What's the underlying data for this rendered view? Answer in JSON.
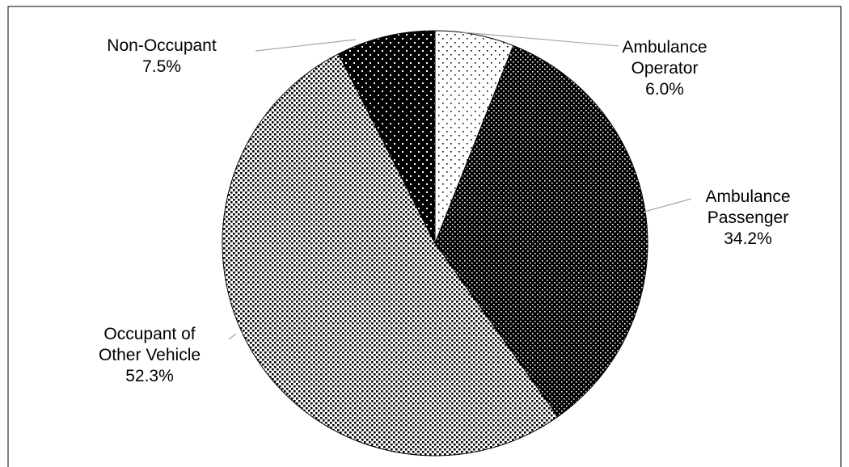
{
  "chart_data": {
    "type": "pie",
    "categories": [
      "Ambulance\nOperator",
      "Ambulance\nPassenger",
      "Occupant of\nOther Vehicle",
      "Non-Occupant"
    ],
    "values": [
      6.0,
      34.2,
      52.3,
      7.5
    ],
    "value_labels": [
      "6.0%",
      "34.2%",
      "52.3%",
      "7.5%"
    ]
  }
}
